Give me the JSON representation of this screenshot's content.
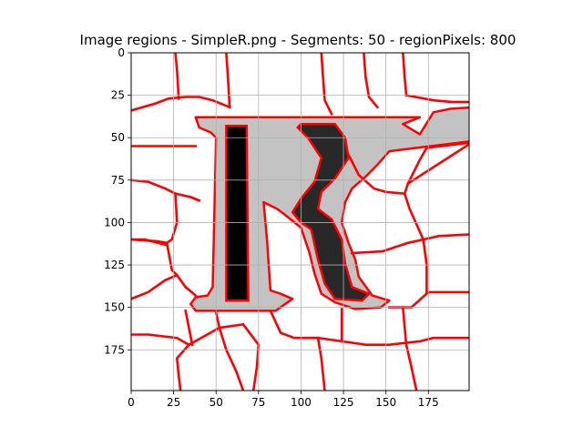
{
  "chart_data": {
    "type": "image-segmentation",
    "title": "Image regions - SimpleR.png - Segments: 50 - regionPixels: 800",
    "xlabel": "",
    "ylabel": "",
    "xlim": [
      0,
      199
    ],
    "ylim": [
      199,
      0
    ],
    "x_ticks": [
      0,
      25,
      50,
      75,
      100,
      125,
      150,
      175
    ],
    "y_ticks": [
      0,
      25,
      50,
      75,
      100,
      125,
      150,
      175
    ],
    "grid": true,
    "colors": {
      "boundary": "#ff0000",
      "glyph_fill": "#c3c3c3",
      "dark_region": "#282828",
      "black_region": "#000000",
      "background": "#ffffff",
      "grid": "#b0b0b0"
    },
    "letter_outline": [
      [
        38,
        38
      ],
      [
        170,
        38
      ],
      [
        160,
        42
      ],
      [
        170,
        48
      ],
      [
        178,
        35
      ],
      [
        188,
        33
      ],
      [
        202,
        32
      ],
      [
        201,
        40
      ],
      [
        201,
        52
      ],
      [
        160,
        57
      ],
      [
        152,
        58
      ],
      [
        145,
        66
      ],
      [
        138,
        73
      ],
      [
        130,
        80
      ],
      [
        126,
        88
      ],
      [
        124,
        100
      ],
      [
        128,
        112
      ],
      [
        132,
        122
      ],
      [
        134,
        132
      ],
      [
        142,
        143
      ],
      [
        152,
        146
      ],
      [
        147,
        150
      ],
      [
        132,
        151
      ],
      [
        120,
        147
      ],
      [
        112,
        142
      ],
      [
        108,
        130
      ],
      [
        105,
        118
      ],
      [
        100,
        103
      ],
      [
        90,
        95
      ],
      [
        86,
        92
      ],
      [
        78,
        88
      ],
      [
        80,
        110
      ],
      [
        82,
        140
      ],
      [
        88,
        142
      ],
      [
        95,
        145
      ],
      [
        85,
        152
      ],
      [
        38,
        152
      ],
      [
        35,
        148
      ],
      [
        38,
        144
      ],
      [
        45,
        143
      ],
      [
        48,
        138
      ],
      [
        50,
        50
      ],
      [
        47,
        47
      ],
      [
        40,
        44
      ]
    ],
    "black_stroke": [
      [
        56,
        43
      ],
      [
        68,
        43
      ],
      [
        69,
        146
      ],
      [
        56,
        146
      ]
    ],
    "dark_shape": [
      [
        100,
        42
      ],
      [
        120,
        42
      ],
      [
        126,
        50
      ],
      [
        128,
        62
      ],
      [
        120,
        74
      ],
      [
        112,
        82
      ],
      [
        110,
        92
      ],
      [
        118,
        98
      ],
      [
        124,
        110
      ],
      [
        126,
        124
      ],
      [
        130,
        138
      ],
      [
        140,
        142
      ],
      [
        136,
        146
      ],
      [
        120,
        145
      ],
      [
        114,
        136
      ],
      [
        110,
        122
      ],
      [
        106,
        104
      ],
      [
        100,
        100
      ],
      [
        95,
        94
      ],
      [
        100,
        86
      ],
      [
        108,
        76
      ],
      [
        112,
        62
      ],
      [
        104,
        50
      ],
      [
        98,
        44
      ]
    ],
    "segment_edges": [
      [
        [
          0,
          34
        ],
        [
          14,
          30
        ],
        [
          22,
          27
        ],
        [
          32,
          26
        ],
        [
          40,
          26
        ],
        [
          48,
          28
        ],
        [
          58,
          32
        ]
      ],
      [
        [
          26,
          0
        ],
        [
          27,
          10
        ],
        [
          28,
          27
        ]
      ],
      [
        [
          56,
          0
        ],
        [
          57,
          15
        ],
        [
          58,
          32
        ]
      ],
      [
        [
          112,
          0
        ],
        [
          113,
          15
        ],
        [
          114,
          28
        ],
        [
          118,
          36
        ]
      ],
      [
        [
          137,
          0
        ],
        [
          138,
          14
        ],
        [
          140,
          26
        ],
        [
          145,
          32
        ]
      ],
      [
        [
          160,
          0
        ],
        [
          161,
          14
        ],
        [
          162,
          25
        ]
      ],
      [
        [
          162,
          25
        ],
        [
          178,
          28
        ],
        [
          189,
          29
        ],
        [
          199,
          29
        ]
      ],
      [
        [
          0,
          55
        ],
        [
          8,
          55
        ],
        [
          25,
          55
        ],
        [
          38,
          55
        ]
      ],
      [
        [
          0,
          75
        ],
        [
          10,
          76
        ],
        [
          20,
          80
        ],
        [
          26,
          83
        ],
        [
          35,
          85
        ],
        [
          40,
          87
        ]
      ],
      [
        [
          26,
          83
        ],
        [
          27,
          100
        ],
        [
          24,
          110
        ],
        [
          21,
          112
        ],
        [
          15,
          111
        ],
        [
          0,
          110
        ]
      ],
      [
        [
          21,
          112
        ],
        [
          24,
          128
        ],
        [
          27,
          131
        ],
        [
          32,
          138
        ]
      ],
      [
        [
          0,
          145
        ],
        [
          10,
          141
        ],
        [
          20,
          134
        ],
        [
          27,
          131
        ]
      ],
      [
        [
          0,
          166
        ],
        [
          10,
          166
        ],
        [
          27,
          168
        ],
        [
          34,
          172
        ]
      ],
      [
        [
          34,
          172
        ],
        [
          27,
          180
        ],
        [
          28,
          190
        ],
        [
          29,
          199
        ]
      ],
      [
        [
          32,
          138
        ],
        [
          38,
          143
        ]
      ],
      [
        [
          32,
          152
        ],
        [
          36,
          172
        ]
      ],
      [
        [
          34,
          172
        ],
        [
          52,
          162
        ],
        [
          66,
          160
        ]
      ],
      [
        [
          50,
          153
        ],
        [
          52,
          162
        ],
        [
          56,
          175
        ],
        [
          62,
          188
        ],
        [
          66,
          199
        ]
      ],
      [
        [
          66,
          160
        ],
        [
          75,
          172
        ],
        [
          74,
          185
        ],
        [
          72,
          199
        ]
      ],
      [
        [
          82,
          152
        ],
        [
          88,
          165
        ],
        [
          96,
          168
        ],
        [
          110,
          168
        ]
      ],
      [
        [
          110,
          168
        ],
        [
          112,
          180
        ],
        [
          114,
          199
        ]
      ],
      [
        [
          110,
          168
        ],
        [
          124,
          170
        ],
        [
          138,
          172
        ],
        [
          152,
          172
        ],
        [
          170,
          170
        ],
        [
          178,
          168
        ],
        [
          199,
          168
        ]
      ],
      [
        [
          124,
          151
        ],
        [
          124,
          170
        ]
      ],
      [
        [
          152,
          150
        ],
        [
          165,
          150
        ],
        [
          175,
          141
        ],
        [
          199,
          141
        ]
      ],
      [
        [
          160,
          150
        ],
        [
          162,
          172
        ],
        [
          165,
          185
        ],
        [
          168,
          199
        ]
      ],
      [
        [
          130,
          118
        ],
        [
          148,
          117
        ],
        [
          163,
          112
        ],
        [
          172,
          110
        ],
        [
          181,
          108
        ],
        [
          199,
          107
        ]
      ],
      [
        [
          172,
          110
        ],
        [
          174,
          125
        ],
        [
          174,
          141
        ]
      ],
      [
        [
          172,
          110
        ],
        [
          164,
          92
        ],
        [
          161,
          83
        ],
        [
          163,
          77
        ],
        [
          170,
          63
        ],
        [
          174,
          56
        ],
        [
          199,
          53
        ]
      ],
      [
        [
          161,
          83
        ],
        [
          150,
          82
        ],
        [
          143,
          80
        ],
        [
          134,
          72
        ],
        [
          128,
          60
        ]
      ],
      [
        [
          202,
          52
        ],
        [
          163,
          77
        ]
      ],
      [
        [
          40,
          87
        ],
        [
          35,
          85
        ]
      ],
      [
        [
          20,
          113
        ],
        [
          8,
          110
        ],
        [
          0,
          110
        ]
      ]
    ]
  }
}
